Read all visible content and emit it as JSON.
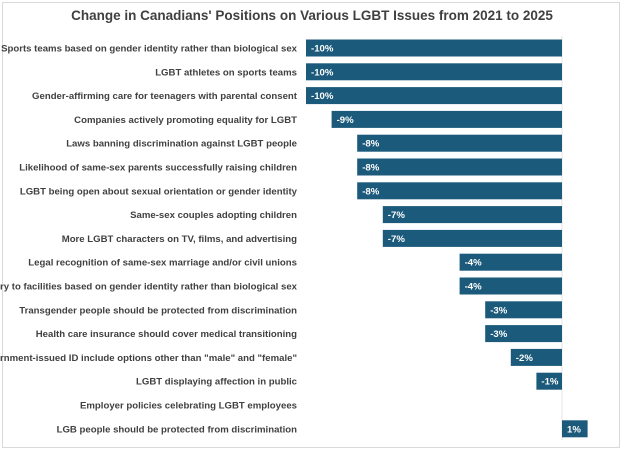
{
  "chart_data": {
    "type": "bar",
    "orientation": "horizontal",
    "title": "Change in Canadians' Positions on Various LGBT Issues from 2021 to 2025",
    "categories": [
      "Sports teams based on gender identity rather than biological sex",
      "LGBT athletes on sports teams",
      "Gender-affirming care for teenagers with parental consent",
      "Companies actively promoting equality for LGBT",
      "Laws banning discrimination against LGBT people",
      "Likelihood of same-sex parents successfully raising children",
      "LGBT being open about sexual orientation or gender identity",
      "Same-sex couples adopting children",
      "More LGBT characters on TV, films, and advertising",
      "Legal recognition of same-sex marriage and/or civil unions",
      "Entry to facilities based on gender identity rather than biological sex",
      "Transgender people should be protected from discrimination",
      "Health care insurance should cover medical transitioning",
      "Government-issued ID include options other than \"male\" and \"female\"",
      "LGBT displaying affection in public",
      "Employer policies celebrating LGBT employees",
      "LGB people should be protected from discrimination"
    ],
    "values": [
      -10,
      -10,
      -10,
      -9,
      -8,
      -8,
      -8,
      -7,
      -7,
      -4,
      -4,
      -3,
      -3,
      -2,
      -1,
      0,
      1
    ],
    "data_labels": [
      "-10%",
      "-10%",
      "-10%",
      "-9%",
      "-8%",
      "-8%",
      "-8%",
      "-7%",
      "-7%",
      "-4%",
      "-4%",
      "-3%",
      "-3%",
      "-2%",
      "-1%",
      "",
      "1%"
    ],
    "unit": "%",
    "xlim": [
      -10,
      1
    ],
    "grid": false,
    "legend": "none",
    "bar_color": "#1b5a7a"
  }
}
